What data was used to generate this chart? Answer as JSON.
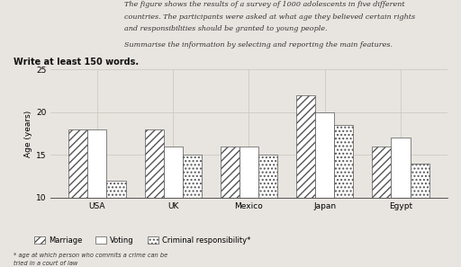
{
  "categories": [
    "USA",
    "UK",
    "Mexico",
    "Japan",
    "Egypt"
  ],
  "marriage": [
    18,
    18,
    16,
    22,
    16
  ],
  "voting": [
    18,
    16,
    16,
    20,
    17
  ],
  "criminal_responsibility": [
    12,
    15,
    15,
    18.5,
    14
  ],
  "ylim": [
    10,
    25
  ],
  "yticks": [
    10,
    15,
    20,
    25
  ],
  "ylabel": "Age (years)",
  "bg_color": "#e8e5e0",
  "bar_width": 0.25,
  "text_line1": "The figure shows the results of a survey of 1000 adolescents in five different",
  "text_line2": "countries. The participants were asked at what age they believed certain rights",
  "text_line3": "and responsibilities should be granted to young people.",
  "text_line4": "Summarise the information by selecting and reporting the main features.",
  "write_label": "Write at least 150 words.",
  "footnote_line1": "* age at which person who commits a crime can be",
  "footnote_line2": "tried in a court of law",
  "legend_labels": [
    "Marriage",
    "Voting",
    "Criminal responsibility*"
  ],
  "chart_bg": "#e8e5e0",
  "grid_color": "#c8c4bc",
  "edge_color": "#555555",
  "text_color": "#333333"
}
